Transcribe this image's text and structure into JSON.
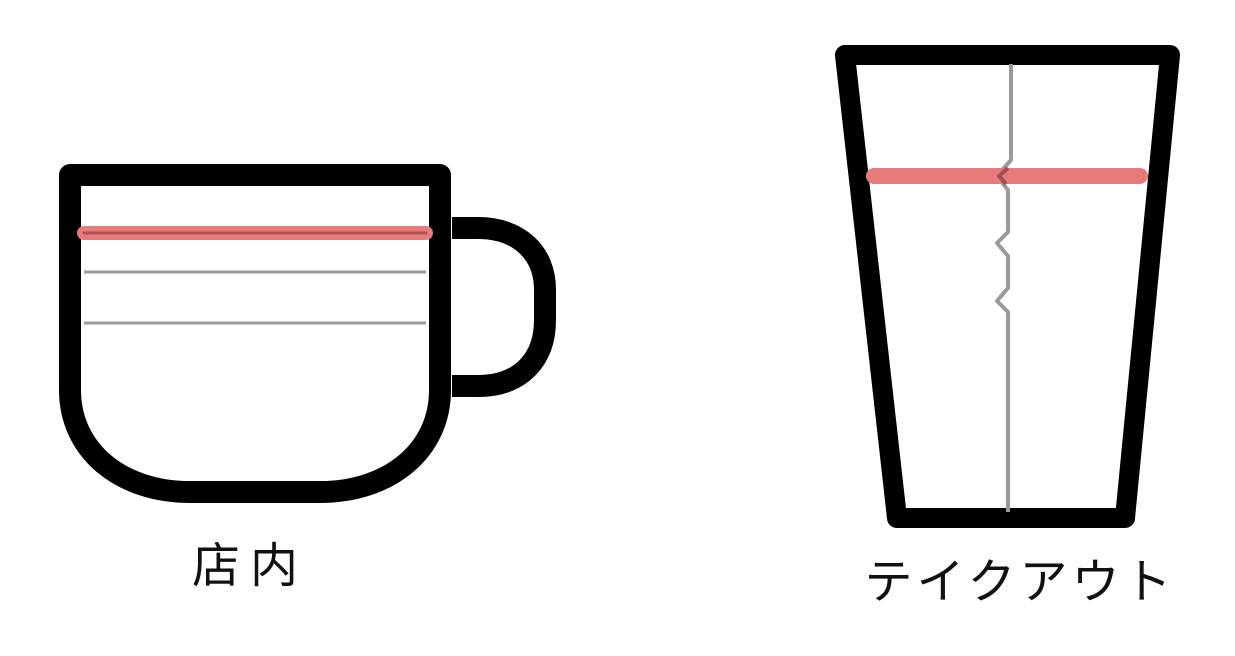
{
  "labels": {
    "dine_in": "店内",
    "takeout": "テイクアウト"
  },
  "colors": {
    "outline": "#000000",
    "fill": "#ffffff",
    "fill_line": "#e87a7a",
    "guide_line": "#9a9a9a"
  },
  "icons": [
    "mug-icon",
    "takeout-cup-icon"
  ]
}
